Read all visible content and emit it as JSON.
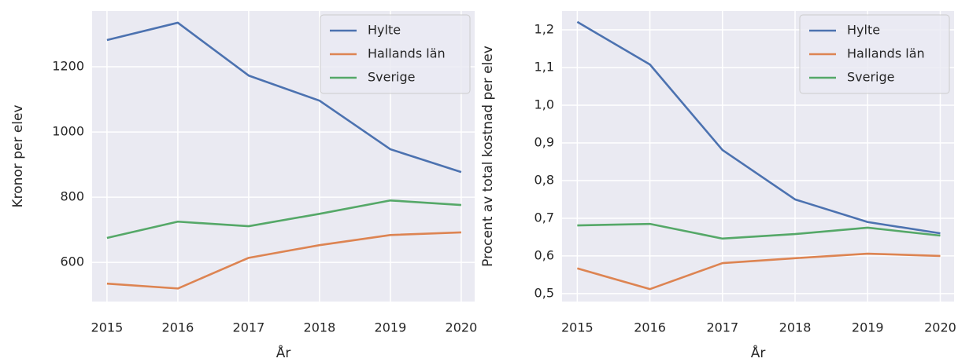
{
  "chart_data": [
    {
      "type": "line",
      "xlabel": "År",
      "ylabel": "Kronor per elev",
      "x": [
        2015,
        2016,
        2017,
        2018,
        2019,
        2020
      ],
      "xlim": [
        2014.79,
        2020.19
      ],
      "xticks": [
        2015,
        2016,
        2017,
        2018,
        2019,
        2020
      ],
      "ylim": [
        480,
        1371
      ],
      "yticks": [
        600,
        800,
        1000,
        1200
      ],
      "grid": true,
      "legend": "upper right",
      "series": [
        {
          "name": "Hylte",
          "color": "#4c72b0",
          "values": [
            1282,
            1335,
            1173,
            1096,
            947,
            877
          ]
        },
        {
          "name": "Hallands län",
          "color": "#dd8452",
          "values": [
            535,
            520,
            614,
            653,
            684,
            692
          ]
        },
        {
          "name": "Sverige",
          "color": "#55a868",
          "values": [
            675,
            725,
            711,
            749,
            790,
            776
          ]
        }
      ]
    },
    {
      "type": "line",
      "xlabel": "År",
      "ylabel": "Procent av total kostnad per elev",
      "x": [
        2015,
        2016,
        2017,
        2018,
        2019,
        2020
      ],
      "xlim": [
        2014.79,
        2020.19
      ],
      "xticks": [
        2015,
        2016,
        2017,
        2018,
        2019,
        2020
      ],
      "ylim": [
        0.479,
        1.25
      ],
      "yticks": [
        {
          "value": 0.5,
          "label": "0,5"
        },
        {
          "value": 0.6,
          "label": "0,6"
        },
        {
          "value": 0.7,
          "label": "0,7"
        },
        {
          "value": 0.8,
          "label": "0,8"
        },
        {
          "value": 0.9,
          "label": "0,9"
        },
        {
          "value": 1.0,
          "label": "1,0"
        },
        {
          "value": 1.1,
          "label": "1,1"
        },
        {
          "value": 1.2,
          "label": "1,2"
        }
      ],
      "grid": true,
      "legend": "upper right",
      "series": [
        {
          "name": "Hylte",
          "color": "#4c72b0",
          "values": [
            1.221,
            1.108,
            0.881,
            0.75,
            0.69,
            0.66
          ]
        },
        {
          "name": "Hallands län",
          "color": "#dd8452",
          "values": [
            0.567,
            0.512,
            0.581,
            0.594,
            0.606,
            0.6
          ]
        },
        {
          "name": "Sverige",
          "color": "#55a868",
          "values": [
            0.681,
            0.685,
            0.646,
            0.658,
            0.675,
            0.654
          ]
        }
      ]
    }
  ]
}
